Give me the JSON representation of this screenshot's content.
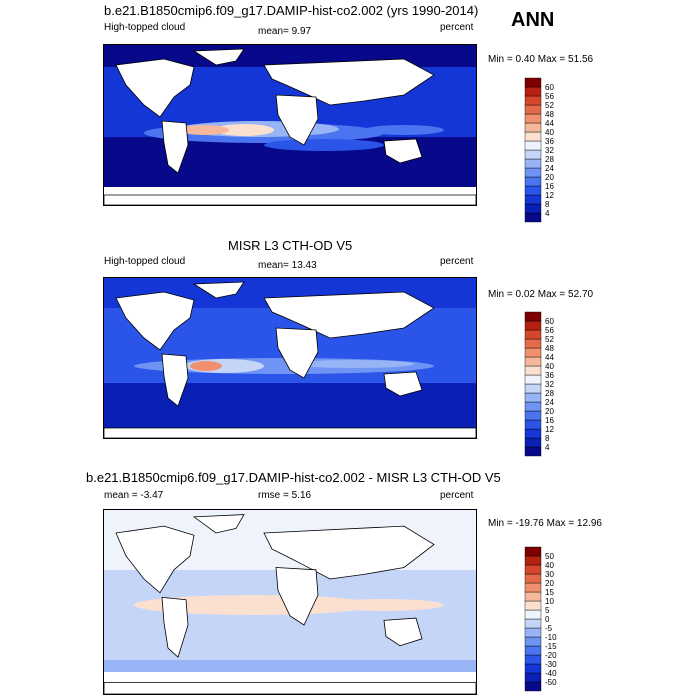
{
  "season": "ANN",
  "panels": [
    {
      "title": "b.e21.B1850cmip6.f09_g17.DAMIP-hist-co2.002 (yrs 1990-2014)",
      "left_label": "High-topped cloud",
      "center_label": "mean=  9.97",
      "right_label": "percent",
      "minmax": "Min =   0.40 Max =  51.56"
    },
    {
      "title": "MISR L3 CTH-OD V5",
      "left_label": "High-topped cloud",
      "center_label": "mean=  13.43",
      "right_label": "percent",
      "minmax": "Min =   0.02 Max =  52.70"
    },
    {
      "title": "b.e21.B1850cmip6.f09_g17.DAMIP-hist-co2.002 - MISR L3 CTH-OD V5",
      "left_label": "mean =  -3.47",
      "center_label": "rmse =   5.16",
      "right_label": "percent",
      "minmax": "Min = -19.76 Max =  12.96"
    }
  ],
  "chart_data": [
    {
      "type": "heatmap",
      "variable": "High-topped cloud",
      "units": "percent",
      "mean": 9.97,
      "min": 0.4,
      "max": 51.56,
      "colorbar": {
        "levels": [
          4,
          8,
          12,
          16,
          20,
          24,
          28,
          32,
          36,
          40,
          44,
          48,
          52,
          56,
          60
        ],
        "colors": [
          "#08088a",
          "#0a1fb4",
          "#1536d6",
          "#2a55e8",
          "#4a74f0",
          "#6f94f4",
          "#97b4f6",
          "#c4d5f8",
          "#eef3fc",
          "#fbe0d0",
          "#f6b89c",
          "#f0906e",
          "#e66a48",
          "#d5462a",
          "#b52010",
          "#7f0000"
        ]
      }
    },
    {
      "type": "heatmap",
      "variable": "High-topped cloud",
      "units": "percent",
      "mean": 13.43,
      "min": 0.02,
      "max": 52.7,
      "colorbar": {
        "levels": [
          4,
          8,
          12,
          16,
          20,
          24,
          28,
          32,
          36,
          40,
          44,
          48,
          52,
          56,
          60
        ],
        "colors": [
          "#08088a",
          "#0a1fb4",
          "#1536d6",
          "#2a55e8",
          "#4a74f0",
          "#6f94f4",
          "#97b4f6",
          "#c4d5f8",
          "#eef3fc",
          "#fbe0d0",
          "#f6b89c",
          "#f0906e",
          "#e66a48",
          "#d5462a",
          "#b52010",
          "#7f0000"
        ]
      }
    },
    {
      "type": "heatmap",
      "units": "percent",
      "mean": -3.47,
      "rmse": 5.16,
      "min": -19.76,
      "max": 12.96,
      "colorbar": {
        "levels": [
          -50,
          -40,
          -30,
          -20,
          -15,
          -10,
          -5,
          0,
          5,
          10,
          15,
          20,
          30,
          40,
          50
        ],
        "colors": [
          "#08088a",
          "#0a1fb4",
          "#1536d6",
          "#2a55e8",
          "#4a74f0",
          "#6f94f4",
          "#97b4f6",
          "#c4d5f8",
          "#eef3fc",
          "#fbe0d0",
          "#f6b89c",
          "#f0906e",
          "#e66a48",
          "#d5462a",
          "#b52010",
          "#7f0000"
        ]
      }
    }
  ]
}
